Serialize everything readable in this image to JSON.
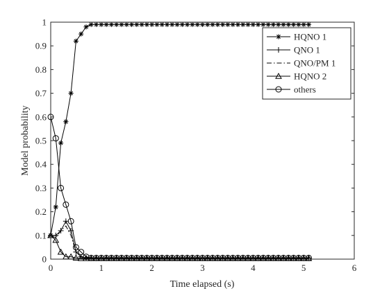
{
  "chart_data": {
    "type": "line",
    "title": "",
    "xlabel": "Time elapsed (s)",
    "ylabel": "Model probability",
    "xlim": [
      0,
      6
    ],
    "ylim": [
      0,
      1
    ],
    "xticks": [
      "0",
      "1",
      "2",
      "3",
      "4",
      "5",
      "6"
    ],
    "yticks": [
      "0",
      "0.1",
      "0.2",
      "0.3",
      "0.4",
      "0.5",
      "0.6",
      "0.7",
      "0.8",
      "0.9",
      "1"
    ],
    "grid": false,
    "legend_position": "top-right",
    "series": [
      {
        "name": "HQNO 1",
        "marker": "asterisk",
        "dash": "solid",
        "x": [
          0,
          0.1,
          0.2,
          0.3,
          0.4,
          0.5,
          0.6,
          0.7,
          0.8,
          0.9,
          1.0,
          1.1,
          1.2,
          1.3,
          1.4,
          1.5,
          1.6,
          1.7,
          1.8,
          1.9,
          2.0,
          2.1,
          2.2,
          2.3,
          2.4,
          2.5,
          2.6,
          2.7,
          2.8,
          2.9,
          3.0,
          3.1,
          3.2,
          3.3,
          3.4,
          3.5,
          3.6,
          3.7,
          3.8,
          3.9,
          4.0,
          4.1,
          4.2,
          4.3,
          4.4,
          4.5,
          4.6,
          4.7,
          4.8,
          4.9,
          5.0,
          5.1
        ],
        "y": [
          0.1,
          0.22,
          0.49,
          0.58,
          0.7,
          0.92,
          0.95,
          0.98,
          0.99,
          0.99,
          0.99,
          0.99,
          0.99,
          0.99,
          0.99,
          0.99,
          0.99,
          0.99,
          0.99,
          0.99,
          0.99,
          0.99,
          0.99,
          0.99,
          0.99,
          0.99,
          0.99,
          0.99,
          0.99,
          0.99,
          0.99,
          0.99,
          0.99,
          0.99,
          0.99,
          0.99,
          0.99,
          0.99,
          0.99,
          0.99,
          0.99,
          0.99,
          0.99,
          0.99,
          0.99,
          0.99,
          0.99,
          0.99,
          0.99,
          0.99,
          0.99,
          0.99
        ]
      },
      {
        "name": "QNO 1",
        "marker": "plus",
        "dash": "solid",
        "x": [
          0,
          0.1,
          0.2,
          0.3,
          0.4,
          0.5,
          0.6,
          0.7,
          0.8,
          0.9,
          1.0,
          1.1,
          1.2,
          1.3,
          1.4,
          1.5,
          1.6,
          1.7,
          1.8,
          1.9,
          2.0,
          2.1,
          2.2,
          2.3,
          2.4,
          2.5,
          2.6,
          2.7,
          2.8,
          2.9,
          3.0,
          3.1,
          3.2,
          3.3,
          3.4,
          3.5,
          3.6,
          3.7,
          3.8,
          3.9,
          4.0,
          4.1,
          4.2,
          4.3,
          4.4,
          4.5,
          4.6,
          4.7,
          4.8,
          4.9,
          5.0,
          5.1
        ],
        "y": [
          0.1,
          0.1,
          0.12,
          0.16,
          0.12,
          0.03,
          0.01,
          0.005,
          0.005,
          0.005,
          0.005,
          0.005,
          0.005,
          0.005,
          0.005,
          0.005,
          0.005,
          0.005,
          0.005,
          0.005,
          0.005,
          0.005,
          0.005,
          0.005,
          0.005,
          0.005,
          0.005,
          0.005,
          0.005,
          0.005,
          0.005,
          0.005,
          0.005,
          0.005,
          0.005,
          0.005,
          0.005,
          0.005,
          0.005,
          0.005,
          0.005,
          0.005,
          0.005,
          0.005,
          0.005,
          0.005,
          0.005,
          0.005,
          0.005,
          0.005,
          0.005,
          0.005
        ]
      },
      {
        "name": "QNO/PM 1",
        "marker": "none",
        "dash": "dashdot",
        "x": [
          0,
          0.1,
          0.2,
          0.3,
          0.4,
          0.5,
          0.6,
          0.7,
          0.8,
          1.0,
          2.0,
          3.0,
          4.0,
          5.0,
          5.1
        ],
        "y": [
          0.1,
          0.09,
          0.12,
          0.14,
          0.1,
          0.03,
          0.01,
          0.005,
          0.005,
          0.005,
          0.005,
          0.005,
          0.005,
          0.005,
          0.005
        ]
      },
      {
        "name": "HQNO 2",
        "marker": "triangle",
        "dash": "solid",
        "x": [
          0,
          0.1,
          0.2,
          0.3,
          0.4,
          0.5,
          0.6,
          0.7,
          0.8,
          0.9,
          1.0,
          1.1,
          1.2,
          1.3,
          1.4,
          1.5,
          1.6,
          1.7,
          1.8,
          1.9,
          2.0,
          2.1,
          2.2,
          2.3,
          2.4,
          2.5,
          2.6,
          2.7,
          2.8,
          2.9,
          3.0,
          3.1,
          3.2,
          3.3,
          3.4,
          3.5,
          3.6,
          3.7,
          3.8,
          3.9,
          4.0,
          4.1,
          4.2,
          4.3,
          4.4,
          4.5,
          4.6,
          4.7,
          4.8,
          4.9,
          5.0,
          5.1
        ],
        "y": [
          0.1,
          0.08,
          0.03,
          0.01,
          0.01,
          0.005,
          0.003,
          0.003,
          0.003,
          0.003,
          0.003,
          0.003,
          0.003,
          0.003,
          0.003,
          0.003,
          0.003,
          0.003,
          0.003,
          0.003,
          0.003,
          0.003,
          0.003,
          0.003,
          0.003,
          0.003,
          0.003,
          0.003,
          0.003,
          0.003,
          0.003,
          0.003,
          0.003,
          0.003,
          0.003,
          0.003,
          0.003,
          0.003,
          0.003,
          0.003,
          0.003,
          0.003,
          0.003,
          0.003,
          0.003,
          0.003,
          0.003,
          0.003,
          0.003,
          0.003,
          0.003,
          0.003
        ]
      },
      {
        "name": "others",
        "marker": "circle",
        "dash": "solid",
        "x": [
          0,
          0.1,
          0.2,
          0.3,
          0.4,
          0.5,
          0.6,
          0.7,
          0.8,
          0.9,
          1.0,
          1.1,
          1.2,
          1.3,
          1.4,
          1.5,
          1.6,
          1.7,
          1.8,
          1.9,
          2.0,
          2.1,
          2.2,
          2.3,
          2.4,
          2.5,
          2.6,
          2.7,
          2.8,
          2.9,
          3.0,
          3.1,
          3.2,
          3.3,
          3.4,
          3.5,
          3.6,
          3.7,
          3.8,
          3.9,
          4.0,
          4.1,
          4.2,
          4.3,
          4.4,
          4.5,
          4.6,
          4.7,
          4.8,
          4.9,
          5.0,
          5.1
        ],
        "y": [
          0.6,
          0.51,
          0.3,
          0.23,
          0.16,
          0.05,
          0.03,
          0.01,
          0.005,
          0.005,
          0.005,
          0.005,
          0.005,
          0.005,
          0.005,
          0.005,
          0.005,
          0.005,
          0.005,
          0.005,
          0.005,
          0.005,
          0.005,
          0.005,
          0.005,
          0.005,
          0.005,
          0.005,
          0.005,
          0.005,
          0.005,
          0.005,
          0.005,
          0.005,
          0.005,
          0.005,
          0.005,
          0.005,
          0.005,
          0.005,
          0.005,
          0.005,
          0.005,
          0.005,
          0.005,
          0.005,
          0.005,
          0.005,
          0.005,
          0.005,
          0.005,
          0.005
        ]
      }
    ]
  }
}
